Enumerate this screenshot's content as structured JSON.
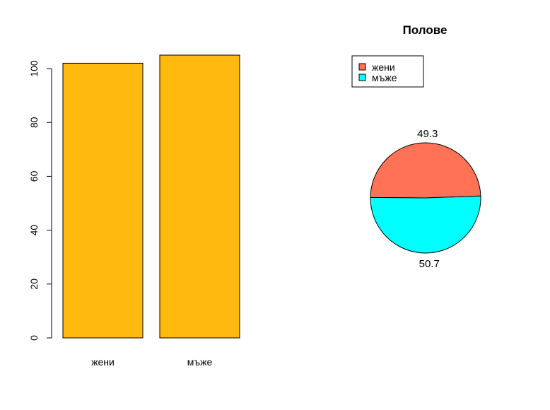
{
  "chart_data": [
    {
      "type": "bar",
      "title": "",
      "xlabel": "",
      "ylabel": "",
      "categories": [
        "жени",
        "мъже"
      ],
      "values": [
        102,
        105
      ],
      "ylim": [
        0,
        105
      ],
      "yticks": [
        0,
        20,
        40,
        60,
        80,
        100
      ],
      "ytick_labels": [
        "0",
        "20",
        "40",
        "60",
        "80",
        "100"
      ],
      "bar_color": "#FFB90F",
      "border_color": "#000000",
      "grid": false
    },
    {
      "type": "pie",
      "title": "Полове",
      "categories": [
        "жени",
        "мъже"
      ],
      "values": [
        49.3,
        50.7
      ],
      "slice_labels": [
        "49.3",
        "50.7"
      ],
      "colors": [
        "#FF7256",
        "#00FFFF"
      ],
      "legend": {
        "placement": "top-left",
        "entries": [
          "жени",
          "мъже"
        ]
      }
    }
  ]
}
